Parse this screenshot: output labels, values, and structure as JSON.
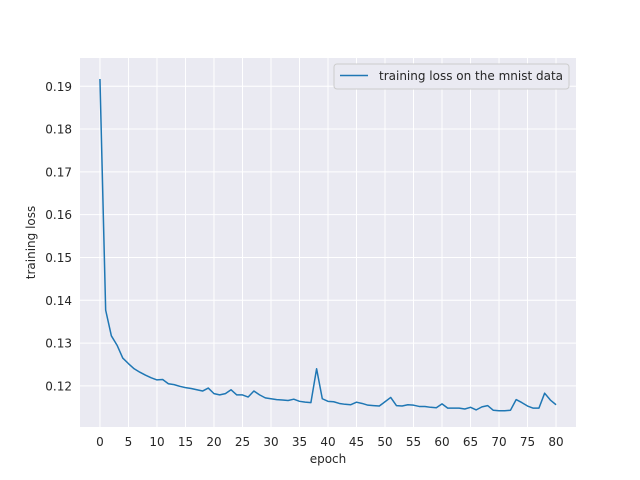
{
  "chart_data": {
    "type": "line",
    "title": "",
    "xlabel": "epoch",
    "ylabel": "training loss",
    "xlim": [
      -3.5,
      83.5
    ],
    "ylim": [
      0.1104,
      0.1966
    ],
    "xticks": [
      0,
      5,
      10,
      15,
      20,
      25,
      30,
      35,
      40,
      45,
      50,
      55,
      60,
      65,
      70,
      75,
      80
    ],
    "yticks": [
      0.12,
      0.13,
      0.14,
      0.15,
      0.16,
      0.17,
      0.18,
      0.19
    ],
    "ytick_labels": [
      "0.12",
      "0.13",
      "0.14",
      "0.15",
      "0.16",
      "0.17",
      "0.18",
      "0.19"
    ],
    "grid": true,
    "background_color": "#eaeaf2",
    "grid_color": "#ffffff",
    "legend_position": "top-right",
    "series": [
      {
        "name": "training loss on the mnist data",
        "color": "#1f77b4",
        "x": [
          0,
          1,
          2,
          3,
          4,
          5,
          6,
          7,
          8,
          9,
          10,
          11,
          12,
          13,
          14,
          15,
          16,
          17,
          18,
          19,
          20,
          21,
          22,
          23,
          24,
          25,
          26,
          27,
          28,
          29,
          30,
          31,
          32,
          33,
          34,
          35,
          36,
          37,
          38,
          39,
          40,
          41,
          42,
          43,
          44,
          45,
          46,
          47,
          48,
          49,
          50,
          51,
          52,
          53,
          54,
          55,
          56,
          57,
          58,
          59,
          60,
          61,
          62,
          63,
          64,
          65,
          66,
          67,
          68,
          69,
          70,
          71,
          72,
          73,
          74,
          75,
          76,
          77,
          78,
          79,
          80
        ],
        "y": [
          0.1917,
          0.1377,
          0.1317,
          0.1295,
          0.1265,
          0.1252,
          0.124,
          0.1232,
          0.1225,
          0.1219,
          0.1214,
          0.1215,
          0.1205,
          0.1203,
          0.1199,
          0.1196,
          0.1194,
          0.1191,
          0.1188,
          0.1195,
          0.1182,
          0.1179,
          0.1182,
          0.1191,
          0.1179,
          0.1179,
          0.1174,
          0.1188,
          0.1179,
          0.1172,
          0.117,
          0.1168,
          0.1167,
          0.1166,
          0.1169,
          0.1164,
          0.1162,
          0.1161,
          0.124,
          0.117,
          0.1164,
          0.1163,
          0.1159,
          0.1157,
          0.1156,
          0.1162,
          0.1159,
          0.1155,
          0.1154,
          0.1153,
          0.1163,
          0.1173,
          0.1154,
          0.1153,
          0.1156,
          0.1155,
          0.1152,
          0.1152,
          0.115,
          0.1149,
          0.1158,
          0.1148,
          0.1148,
          0.1148,
          0.1146,
          0.115,
          0.1144,
          0.1151,
          0.1154,
          0.1143,
          0.1142,
          0.1142,
          0.1143,
          0.1168,
          0.1161,
          0.1153,
          0.1148,
          0.1148,
          0.1183,
          0.1167,
          0.1156
        ]
      }
    ]
  }
}
